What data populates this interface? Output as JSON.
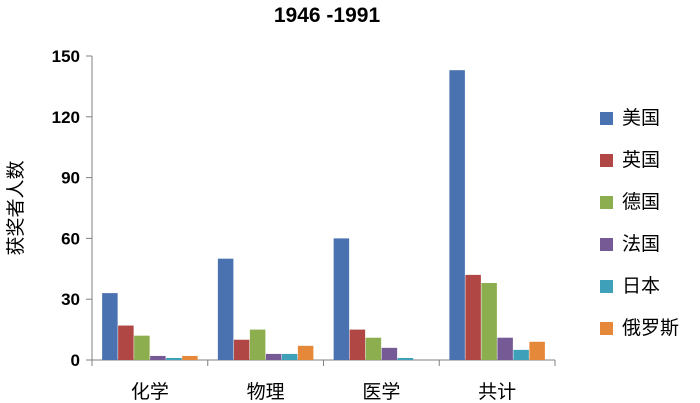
{
  "chart_data": {
    "type": "bar",
    "title": "1946 -1991",
    "xlabel": "",
    "ylabel": "获奖者人数",
    "ylim": [
      0,
      150
    ],
    "yticks": [
      0,
      30,
      60,
      90,
      120,
      150
    ],
    "categories": [
      "化学",
      "物理",
      "医学",
      "共计"
    ],
    "legend_position": "right",
    "grid": false,
    "series": [
      {
        "name": "美国",
        "color": "#4A72B0",
        "values": [
          33,
          50,
          60,
          143
        ]
      },
      {
        "name": "英国",
        "color": "#B04744",
        "values": [
          17,
          10,
          15,
          42
        ]
      },
      {
        "name": "德国",
        "color": "#8CAE4E",
        "values": [
          12,
          15,
          11,
          38
        ]
      },
      {
        "name": "法国",
        "color": "#755A96",
        "values": [
          2,
          3,
          6,
          11
        ]
      },
      {
        "name": "日本",
        "color": "#3FA0BA",
        "values": [
          1,
          3,
          1,
          5
        ]
      },
      {
        "name": "俄罗斯",
        "color": "#E6883A",
        "values": [
          2,
          7,
          0,
          9
        ]
      }
    ]
  }
}
